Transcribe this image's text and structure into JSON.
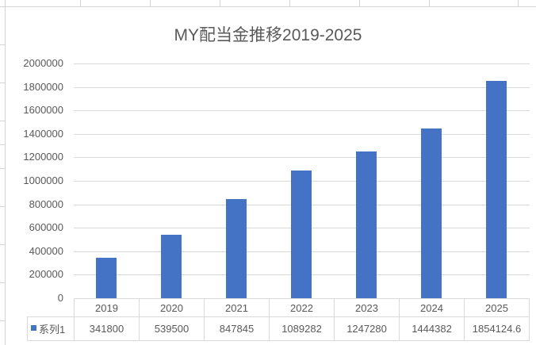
{
  "chart_data": {
    "type": "bar",
    "title": "MY配当金推移2019-2025",
    "categories": [
      "2019",
      "2020",
      "2021",
      "2022",
      "2023",
      "2024",
      "2025"
    ],
    "series": [
      {
        "name": "系列1",
        "color": "#4472C4",
        "values": [
          341800,
          539500,
          847845,
          1089282,
          1247280,
          1444382,
          1854124.6
        ]
      }
    ],
    "xlabel": "",
    "ylabel": "",
    "ylim": [
      0,
      2000000
    ],
    "yticks": [
      "0",
      "200000",
      "400000",
      "600000",
      "800000",
      "1000000",
      "1200000",
      "1400000",
      "1600000",
      "1800000",
      "2000000"
    ],
    "grid": true,
    "legend_position": "data-table",
    "data_table": {
      "header": [
        "2019",
        "2020",
        "2021",
        "2022",
        "2023",
        "2024",
        "2025"
      ],
      "rows": [
        {
          "label": "系列1",
          "values": [
            "341800",
            "539500",
            "847845",
            "1089282",
            "1247280",
            "1444382",
            "1854124.6"
          ]
        }
      ]
    }
  }
}
